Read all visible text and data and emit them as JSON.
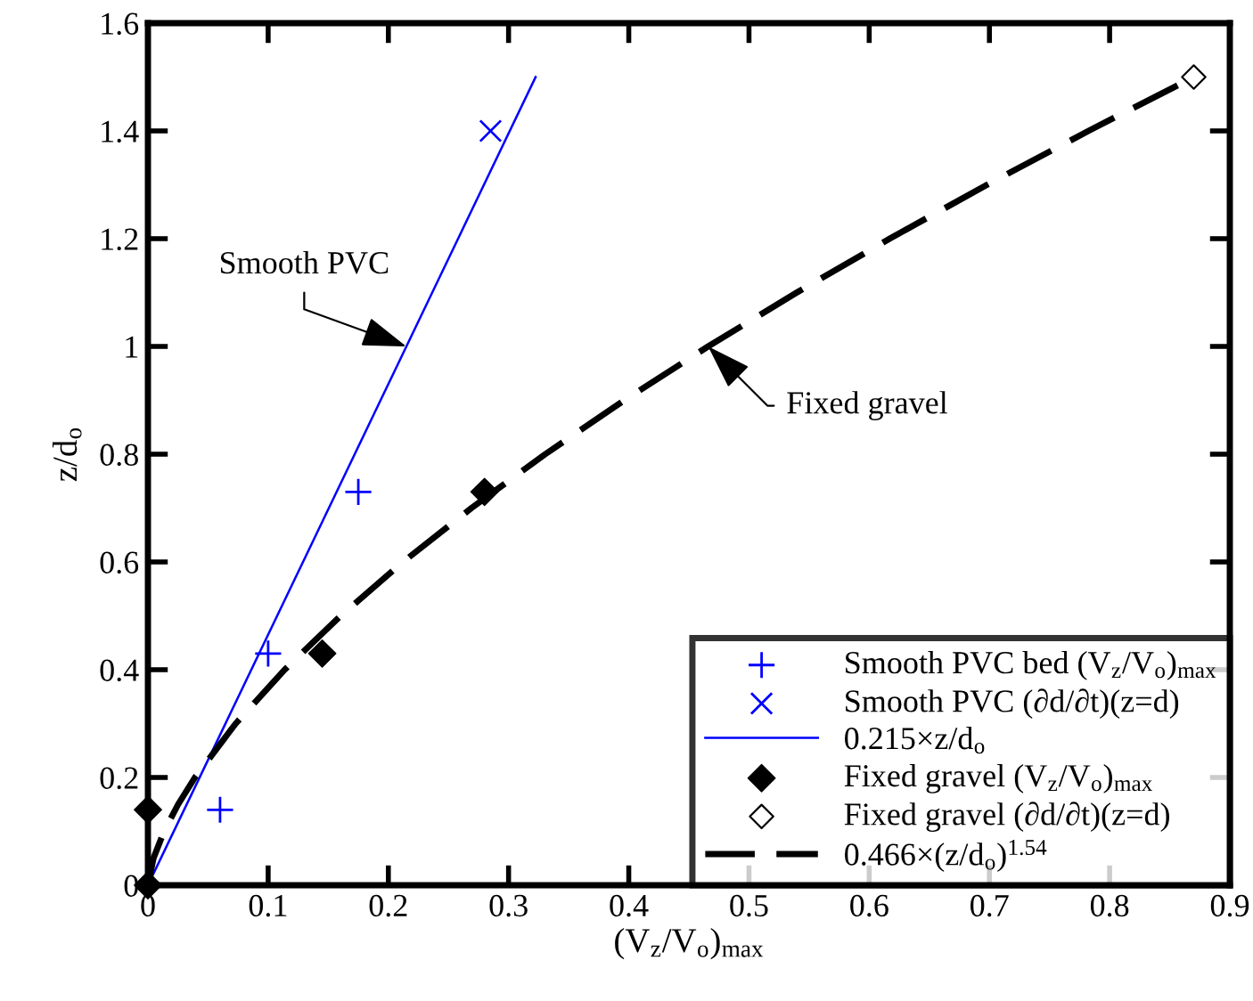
{
  "chart_data": {
    "type": "scatter",
    "xlabel": "(V$_{z}$/V$_{o}$)$_{max}$",
    "ylabel": "z/d$_{o}$",
    "xlim": [
      0,
      0.9
    ],
    "ylim": [
      0,
      1.6
    ],
    "xticks": [
      0,
      0.1,
      0.2,
      0.3,
      0.4,
      0.5,
      0.6,
      0.7,
      0.8,
      0.9
    ],
    "yticks": [
      0,
      0.2,
      0.4,
      0.6,
      0.8,
      1,
      1.2,
      1.4,
      1.6
    ],
    "grid": false,
    "legend": "bottom right",
    "series": [
      {
        "name": "Smooth PVC bed (V$_{z}$/V$_{o}$)$_{max}$",
        "marker": "plus",
        "color": "#0000ff",
        "x": [
          0.06,
          0.1,
          0.175
        ],
        "values": [
          0.14,
          0.43,
          0.73
        ]
      },
      {
        "name": "Smooth PVC (∂d/∂t)(z=d)",
        "marker": "cross",
        "color": "#0000ff",
        "x": [
          0.285
        ],
        "values": [
          1.4
        ]
      },
      {
        "name": "0.215×z/d$_{o}$",
        "type": "line",
        "line_style": "solid",
        "color": "#0000ff",
        "x": [
          0,
          0.3225
        ],
        "values": [
          0,
          1.5
        ]
      },
      {
        "name": "Fixed gravel (V$_{z}$/V$_{o}$)$_{max}$",
        "marker": "diamond",
        "color": "#000000",
        "x": [
          0,
          0,
          0.145,
          0.28
        ],
        "values": [
          0,
          0.14,
          0.43,
          0.73
        ]
      },
      {
        "name": "Fixed gravel (∂d/∂t)(z=d)",
        "marker": "diamond_open",
        "color": "#000000",
        "x": [
          0.87
        ],
        "values": [
          1.5
        ]
      },
      {
        "name": "0.466×(z/d$_{o}$)$^{1.54}$",
        "type": "line",
        "line_style": "dashed",
        "color": "#000000",
        "x": [
          0,
          0.0046,
          0.0134,
          0.0251,
          0.0391,
          0.073,
          0.1137,
          0.1603,
          0.2122,
          0.2691,
          0.3305,
          0.3962,
          0.466,
          0.5397,
          0.617,
          0.698,
          0.7824,
          0.8701
        ],
        "values": [
          0,
          0.05,
          0.1,
          0.15,
          0.2,
          0.3,
          0.4,
          0.5,
          0.6,
          0.7,
          0.8,
          0.9,
          1.0,
          1.1,
          1.2,
          1.3,
          1.4,
          1.5
        ]
      }
    ],
    "annotations": [
      {
        "text": "Smooth PVC",
        "x": 0.215,
        "y": 1.0
      },
      {
        "text": "Fixed gravel",
        "x": 0.466,
        "y": 1.0
      }
    ]
  }
}
